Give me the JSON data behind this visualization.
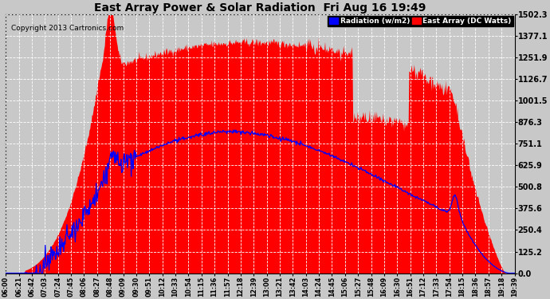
{
  "title": "East Array Power & Solar Radiation  Fri Aug 16 19:49",
  "copyright": "Copyright 2013 Cartronics.com",
  "yticks": [
    0.0,
    125.2,
    250.4,
    375.6,
    500.8,
    625.9,
    751.1,
    876.3,
    1001.5,
    1126.7,
    1251.9,
    1377.1,
    1502.3
  ],
  "ymax": 1502.3,
  "bg_color": "#c8c8c8",
  "grid_color": "white",
  "red_fill_color": "#ff0000",
  "blue_line_color": "#0000ff",
  "legend_radiation_label": "Radiation (w/m2)",
  "legend_east_array_label": "East Array (DC Watts)",
  "x_tick_labels": [
    "06:00",
    "06:21",
    "06:42",
    "07:03",
    "07:24",
    "07:45",
    "08:06",
    "08:27",
    "08:48",
    "09:09",
    "09:30",
    "09:51",
    "10:12",
    "10:33",
    "10:54",
    "11:15",
    "11:36",
    "11:57",
    "12:18",
    "12:39",
    "13:00",
    "13:21",
    "13:42",
    "14:03",
    "14:24",
    "14:45",
    "15:06",
    "15:27",
    "15:48",
    "16:09",
    "16:30",
    "16:51",
    "17:12",
    "17:33",
    "17:54",
    "18:15",
    "18:36",
    "18:57",
    "19:18",
    "19:39"
  ],
  "n_points": 800
}
